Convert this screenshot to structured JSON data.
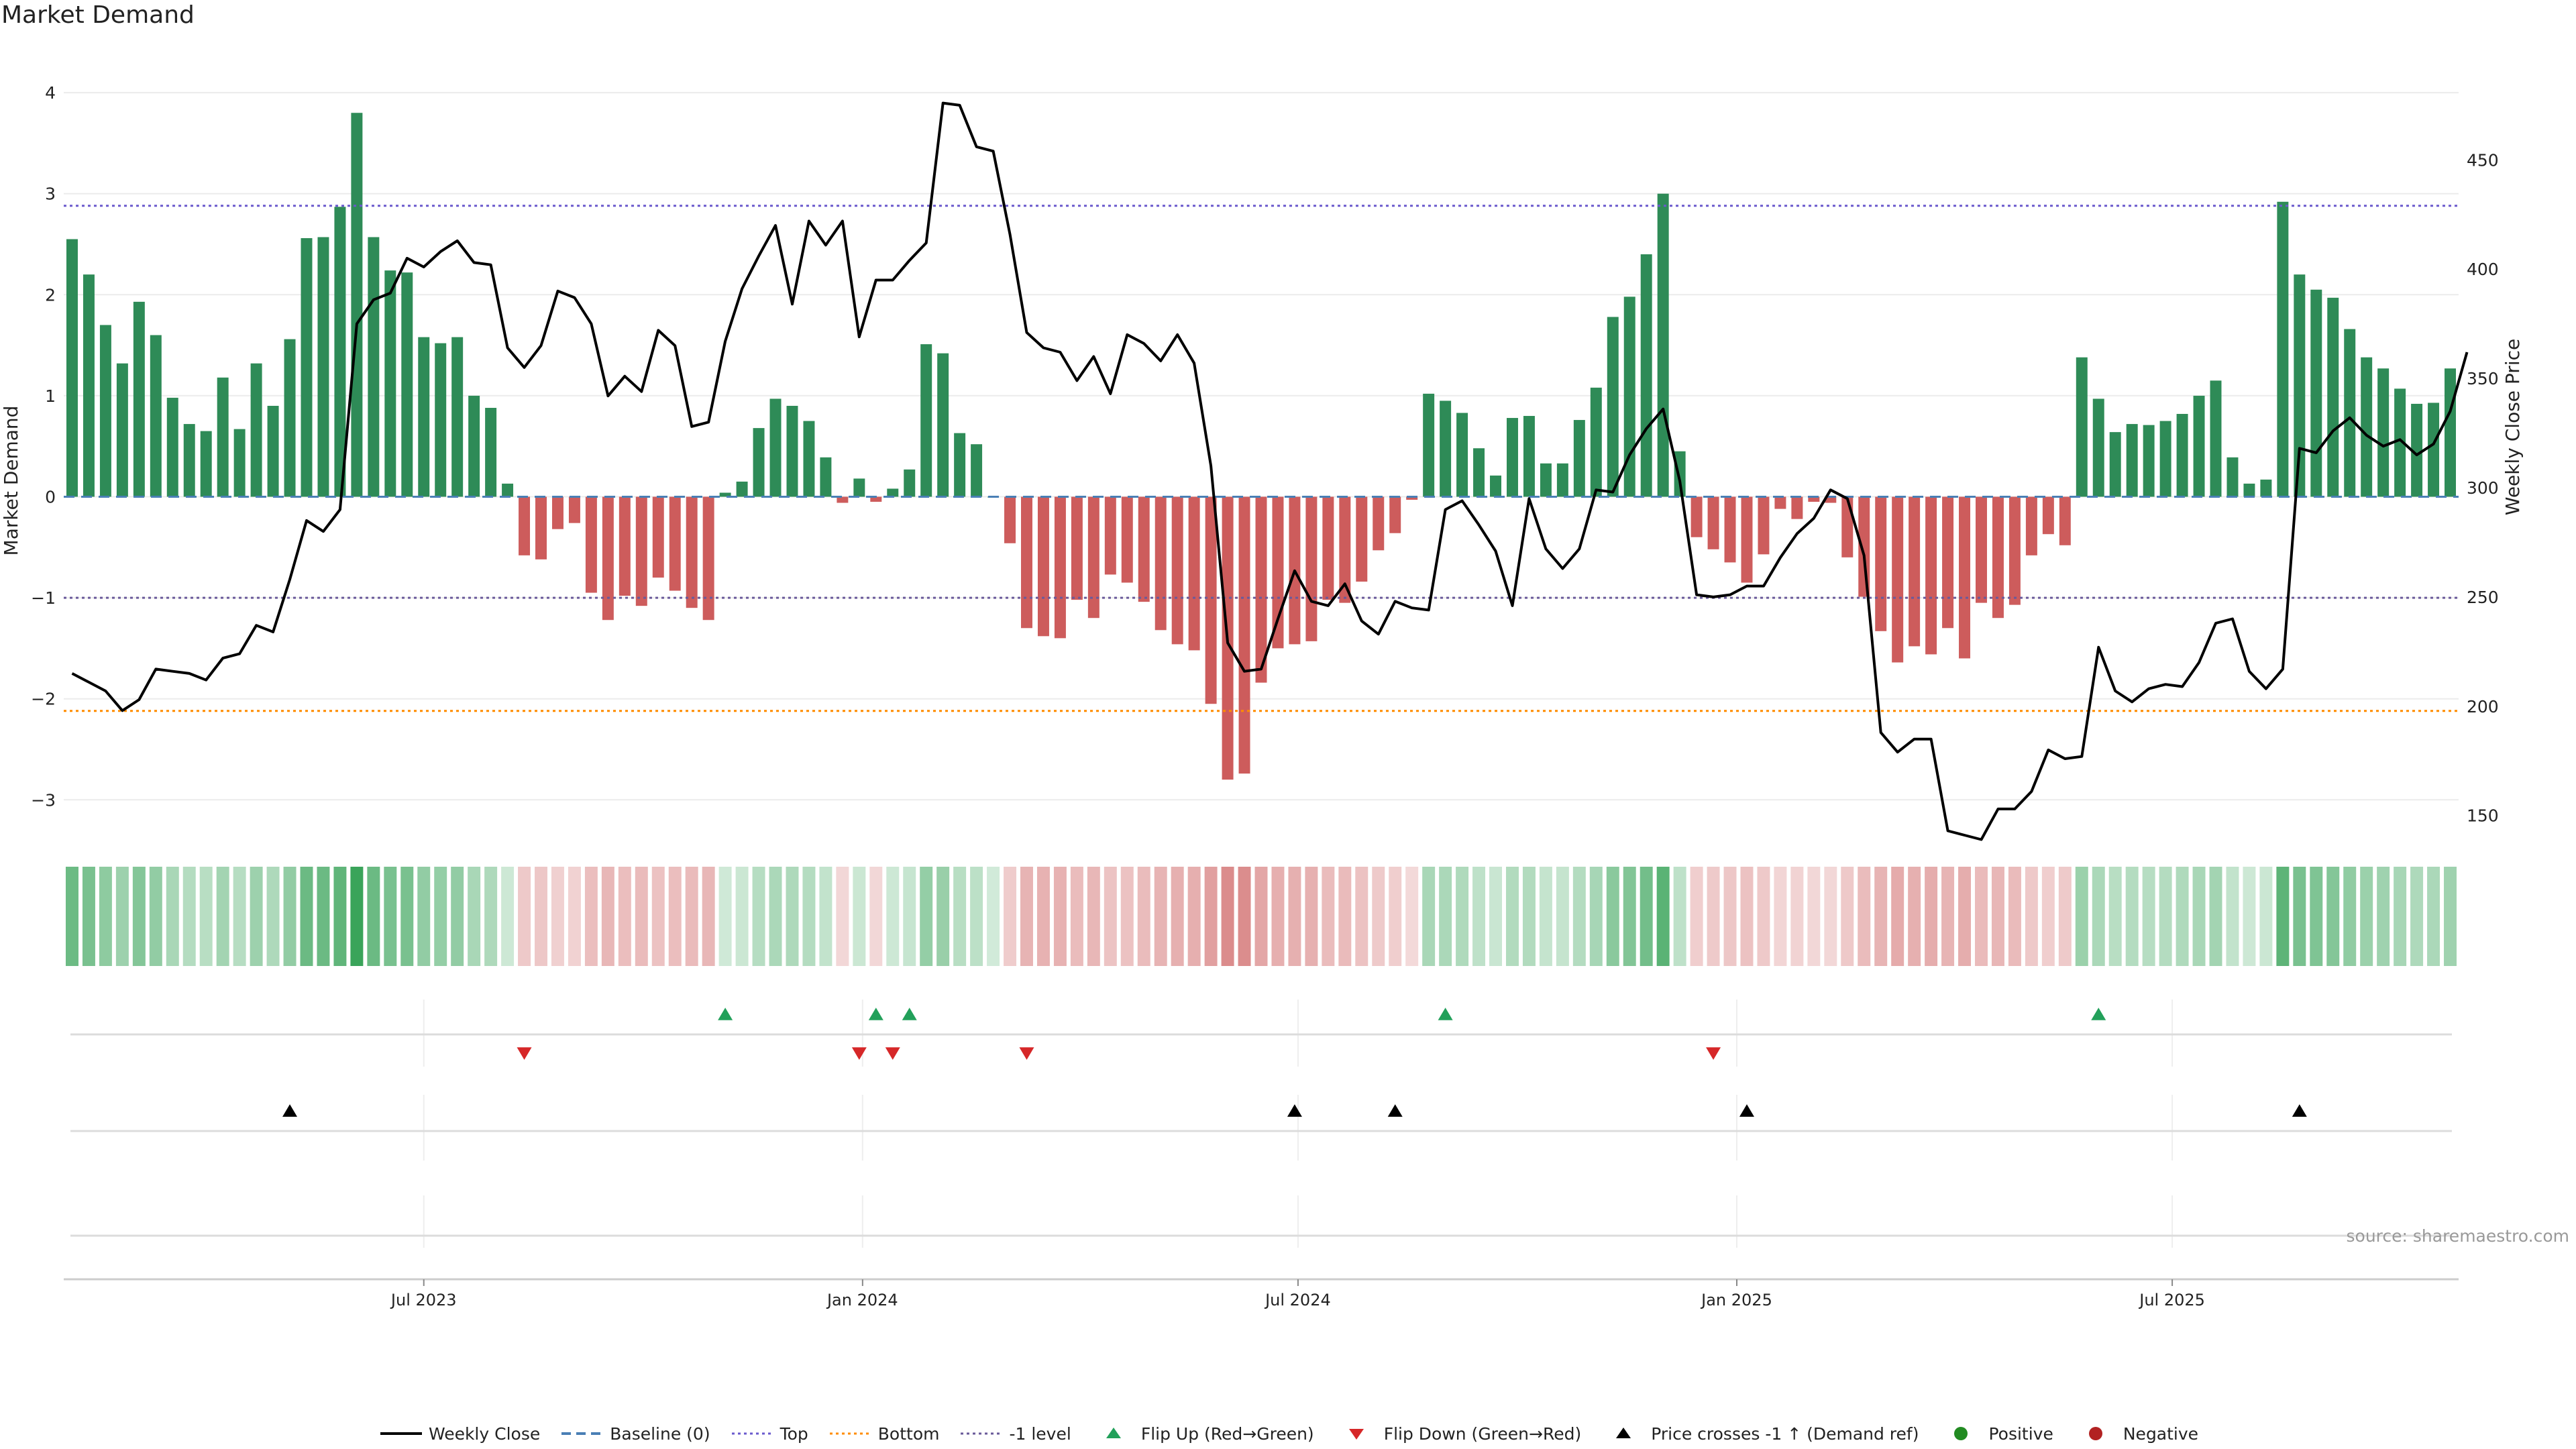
{
  "title": "Market Demand",
  "source": "source: sharemaestro.com",
  "colors": {
    "green": "#2e8b57",
    "red": "#cd5c5c",
    "price": "#000000",
    "baseline": "#4a7fb5",
    "top": "#6a5acd",
    "bottom": "#ff8c00",
    "neg1": "#6a5a9a",
    "flip_up": "#22a05a",
    "flip_down": "#d62728",
    "cross": "#000000",
    "positive": "#228b22",
    "negative": "#b22222"
  },
  "chart_data": {
    "type": "bar",
    "title": "Market Demand",
    "ylabel": "Market Demand",
    "ylabel_right": "Weekly Close Price",
    "ylim": [
      -3.35,
      4.2
    ],
    "ylim_right": [
      141,
      490
    ],
    "yticks": [
      -3,
      -2,
      -1,
      0,
      1,
      2,
      3,
      4
    ],
    "ytick_labels": [
      "−3",
      "−2",
      "−1",
      "0",
      "1",
      "2",
      "3",
      "4"
    ],
    "yticks_right": [
      150,
      200,
      250,
      300,
      350,
      400,
      450
    ],
    "ytick_labels_right": [
      "150",
      "200",
      "250",
      "300",
      "350",
      "400",
      "450"
    ],
    "levels": {
      "baseline": 0,
      "top": 2.88,
      "bottom": -2.12,
      "neg1": -1.0
    },
    "xticks": [
      {
        "week": 21.5,
        "label": "Jul 2023"
      },
      {
        "week": 47.7,
        "label": "Jan 2024"
      },
      {
        "week": 73.7,
        "label": "Jul 2024"
      },
      {
        "week": 99.9,
        "label": "Jan 2025"
      },
      {
        "week": 125.9,
        "label": "Jul 2025"
      }
    ],
    "demand": [
      2.55,
      2.2,
      1.7,
      1.32,
      1.93,
      1.6,
      0.98,
      0.72,
      0.65,
      1.18,
      0.67,
      1.32,
      0.9,
      1.56,
      2.56,
      2.57,
      2.87,
      3.8,
      2.57,
      2.24,
      2.22,
      1.58,
      1.52,
      1.58,
      1.0,
      0.88,
      0.13,
      -0.58,
      -0.62,
      -0.32,
      -0.26,
      -0.95,
      -1.22,
      -0.98,
      -1.08,
      -0.8,
      -0.93,
      -1.1,
      -1.22,
      0.04,
      0.15,
      0.68,
      0.97,
      0.9,
      0.75,
      0.39,
      -0.06,
      0.18,
      -0.05,
      0.08,
      0.27,
      1.51,
      1.42,
      0.63,
      0.52,
      0.0,
      -0.46,
      -1.3,
      -1.38,
      -1.4,
      -1.02,
      -1.2,
      -0.77,
      -0.85,
      -1.04,
      -1.32,
      -1.46,
      -1.52,
      -2.05,
      -2.8,
      -2.74,
      -1.84,
      -1.5,
      -1.46,
      -1.43,
      -1.02,
      -1.05,
      -0.84,
      -0.53,
      -0.36,
      -0.03,
      1.02,
      0.95,
      0.83,
      0.48,
      0.21,
      0.78,
      0.8,
      0.33,
      0.33,
      0.76,
      1.08,
      1.78,
      1.98,
      2.4,
      3.0,
      0.45,
      -0.4,
      -0.52,
      -0.65,
      -0.85,
      -0.57,
      -0.12,
      -0.22,
      -0.05,
      -0.06,
      -0.6,
      -0.99,
      -1.33,
      -1.64,
      -1.48,
      -1.56,
      -1.3,
      -1.6,
      -1.05,
      -1.2,
      -1.07,
      -0.58,
      -0.37,
      -0.48,
      1.38,
      0.97,
      0.64,
      0.72,
      0.71,
      0.75,
      0.82,
      1.0,
      1.15,
      0.39,
      0.13,
      0.17,
      2.92,
      2.2,
      2.05,
      1.97,
      1.66,
      1.38,
      1.27,
      1.07,
      0.92,
      0.93,
      1.27
    ],
    "close": [
      215,
      211,
      207,
      198,
      203,
      217,
      216,
      215,
      212,
      222,
      224,
      237,
      234,
      258,
      285,
      280,
      290,
      375,
      386,
      389,
      405,
      401,
      408,
      413,
      403,
      402,
      364,
      355,
      365,
      390,
      387,
      375,
      342,
      351,
      344,
      372,
      365,
      328,
      330,
      367,
      391,
      406,
      420,
      384,
      422,
      411,
      422,
      369,
      395,
      395,
      404,
      412,
      476,
      475,
      456,
      454,
      416,
      371,
      364,
      362,
      349,
      360,
      343,
      370,
      366,
      358,
      370,
      357,
      310,
      229,
      216,
      217,
      240,
      262,
      248,
      246,
      256,
      239,
      233,
      248,
      245,
      244,
      290,
      294,
      283,
      271,
      246,
      295,
      272,
      263,
      272,
      299,
      298,
      315,
      327,
      336,
      303,
      251,
      250,
      251,
      255,
      255,
      268,
      279,
      286,
      299,
      295,
      269,
      188,
      179,
      185,
      185,
      143,
      141,
      139,
      153,
      153,
      161,
      180,
      176,
      177,
      227,
      207,
      202,
      208,
      210,
      209,
      220,
      238,
      240,
      216,
      208,
      217,
      318,
      316,
      326,
      332,
      324,
      319,
      322,
      315,
      320,
      335,
      362
    ],
    "flip_up": [
      39,
      48,
      50,
      82,
      121
    ],
    "flip_down": [
      27,
      47,
      49,
      57,
      98
    ],
    "price_crosses": [
      13,
      73,
      79,
      100,
      133
    ],
    "series": [
      {
        "name": "Weekly Close"
      },
      {
        "name": "Baseline (0)"
      },
      {
        "name": "Top"
      },
      {
        "name": "Bottom"
      },
      {
        "name": "-1 level"
      },
      {
        "name": "Flip Up (Red→Green)"
      },
      {
        "name": "Flip Down (Green→Red)"
      },
      {
        "name": "Price crosses -1 ↑ (Demand ref)"
      },
      {
        "name": "Positive"
      },
      {
        "name": "Negative"
      }
    ]
  },
  "legend": [
    {
      "label": "Weekly Close",
      "sym": "line-solid",
      "color": "#000000"
    },
    {
      "label": "Baseline (0)",
      "sym": "line-dashed",
      "color": "#4a7fb5"
    },
    {
      "label": "Top",
      "sym": "line-dotted",
      "color": "#6a5acd"
    },
    {
      "label": "Bottom",
      "sym": "line-dotted",
      "color": "#ff8c00"
    },
    {
      "label": "-1 level",
      "sym": "line-dotted",
      "color": "#6a5a9a"
    },
    {
      "label": "Flip Up (Red→Green)",
      "sym": "tri-up",
      "color": "#22a05a"
    },
    {
      "label": "Flip Down (Green→Red)",
      "sym": "tri-down",
      "color": "#d62728"
    },
    {
      "label": "Price crosses -1 ↑ (Demand ref)",
      "sym": "tri-up",
      "color": "#000000"
    },
    {
      "label": "Positive",
      "sym": "dot",
      "color": "#228b22"
    },
    {
      "label": "Negative",
      "sym": "dot",
      "color": "#b22222"
    }
  ]
}
